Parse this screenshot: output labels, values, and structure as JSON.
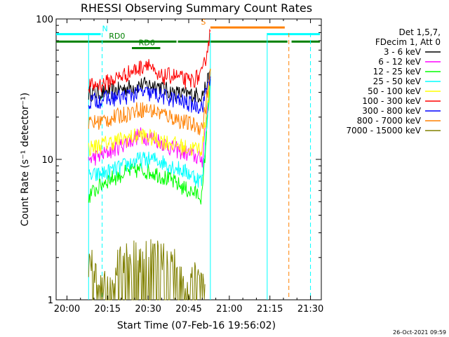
{
  "chart_data": {
    "type": "line",
    "title": "RHESSI Observing Summary Count Rates",
    "xlabel": "Start Time (07-Feb-16 19:56:02)",
    "ylabel": "Count Rate (s⁻¹ detector⁻¹)",
    "y_scale": "log",
    "ylim": [
      1,
      100
    ],
    "xlim": [
      "19:56",
      "21:34"
    ],
    "x_ticks": [
      "20:00",
      "20:15",
      "20:30",
      "20:45",
      "21:00",
      "21:15",
      "21:30"
    ],
    "y_ticks": [
      "1",
      "10",
      "100"
    ],
    "legend_header": [
      "Det 1,5,7,",
      "FDecim 1, Att 0"
    ],
    "legend_position": "right",
    "timestamp": "26-Oct-2021 09:59",
    "series": [
      {
        "name": "3 - 6 keV",
        "color": "#000000",
        "times": [
          "20:08",
          "20:14",
          "20:21",
          "20:27",
          "20:33",
          "20:39",
          "20:45",
          "20:50",
          "20:53"
        ],
        "values": [
          30,
          30,
          32,
          34,
          34,
          30,
          29,
          29,
          40
        ]
      },
      {
        "name": "6 - 12 keV",
        "color": "#ff00ff",
        "times": [
          "20:08",
          "20:14",
          "20:21",
          "20:27",
          "20:33",
          "20:39",
          "20:45",
          "20:50",
          "20:53"
        ],
        "values": [
          10,
          11,
          13,
          15,
          14,
          12,
          11,
          10,
          40
        ]
      },
      {
        "name": "12 - 25 keV",
        "color": "#00ff00",
        "times": [
          "20:08",
          "20:14",
          "20:21",
          "20:27",
          "20:33",
          "20:39",
          "20:45",
          "20:50",
          "20:53"
        ],
        "values": [
          5.5,
          7.0,
          8.0,
          8.5,
          8.0,
          7.0,
          6.0,
          5.5,
          40
        ]
      },
      {
        "name": "25 - 50 keV",
        "color": "#00ffff",
        "times": [
          "20:08",
          "20:14",
          "20:21",
          "20:27",
          "20:33",
          "20:39",
          "20:45",
          "20:50",
          "20:53"
        ],
        "values": [
          7.5,
          8.0,
          9.0,
          10,
          10,
          9.0,
          8.0,
          7.0,
          40
        ]
      },
      {
        "name": "50 - 100 keV",
        "color": "#ffff00",
        "times": [
          "20:08",
          "20:14",
          "20:21",
          "20:27",
          "20:33",
          "20:39",
          "20:45",
          "20:50",
          "20:53"
        ],
        "values": [
          12,
          13,
          14,
          15,
          14,
          13,
          12,
          12,
          40
        ]
      },
      {
        "name": "100 - 300 keV",
        "color": "#ff0000",
        "times": [
          "20:08",
          "20:14",
          "20:21",
          "20:27",
          "20:30",
          "20:33",
          "20:39",
          "20:45",
          "20:50",
          "20:53"
        ],
        "values": [
          33,
          35,
          40,
          45,
          50,
          38,
          40,
          36,
          40,
          80
        ]
      },
      {
        "name": "300 - 800 keV",
        "color": "#0000ff",
        "times": [
          "20:08",
          "20:14",
          "20:21",
          "20:27",
          "20:33",
          "20:39",
          "20:45",
          "20:50",
          "20:53"
        ],
        "values": [
          26,
          27,
          28,
          30,
          29,
          27,
          25,
          24,
          40
        ]
      },
      {
        "name": "800 - 7000 keV",
        "color": "#ff8000",
        "times": [
          "20:08",
          "20:14",
          "20:21",
          "20:27",
          "20:33",
          "20:39",
          "20:45",
          "20:50",
          "20:53"
        ],
        "values": [
          18,
          19,
          21,
          23,
          22,
          20,
          18,
          17,
          40
        ]
      },
      {
        "name": "7000 - 15000 keV",
        "color": "#808000",
        "times": [
          "20:08",
          "20:17",
          "20:19",
          "20:24",
          "20:30",
          "20:36",
          "20:41",
          "20:44",
          "20:47",
          "20:51"
        ],
        "values": [
          1.8,
          1.0,
          1.8,
          1.9,
          2.0,
          1.9,
          1.8,
          1.0,
          1.7,
          1.0
        ]
      }
    ],
    "flags": [
      {
        "label": "N",
        "color": "#00ffff",
        "segments": [
          [
            "19:56",
            "20:13"
          ],
          [
            "21:14",
            "21:34"
          ]
        ],
        "level": 78
      },
      {
        "label": "S",
        "color": "#ff8000",
        "segments": [
          [
            "20:53",
            "21:21"
          ]
        ],
        "level": 87
      },
      {
        "label": "RD0",
        "color": "#008000",
        "segments": [
          [
            "19:56",
            "20:41"
          ],
          [
            "20:41",
            "21:22"
          ],
          [
            "21:23",
            "21:34"
          ]
        ],
        "level": 69
      },
      {
        "label": "RD6",
        "color": "#008000",
        "segments": [
          [
            "20:24",
            "20:35"
          ]
        ],
        "level": 62
      }
    ],
    "vertical_markers": [
      {
        "time": "20:08",
        "color": "#00ffff",
        "style": "solid"
      },
      {
        "time": "20:13",
        "color": "#00ffff",
        "style": "dashed"
      },
      {
        "time": "20:53",
        "color": "#00ffff",
        "style": "solid"
      },
      {
        "time": "21:14",
        "color": "#00ffff",
        "style": "solid"
      },
      {
        "time": "21:22",
        "color": "#ff8000",
        "style": "dashed"
      },
      {
        "time": "21:30",
        "color": "#00ffff",
        "style": "dashed"
      }
    ]
  }
}
